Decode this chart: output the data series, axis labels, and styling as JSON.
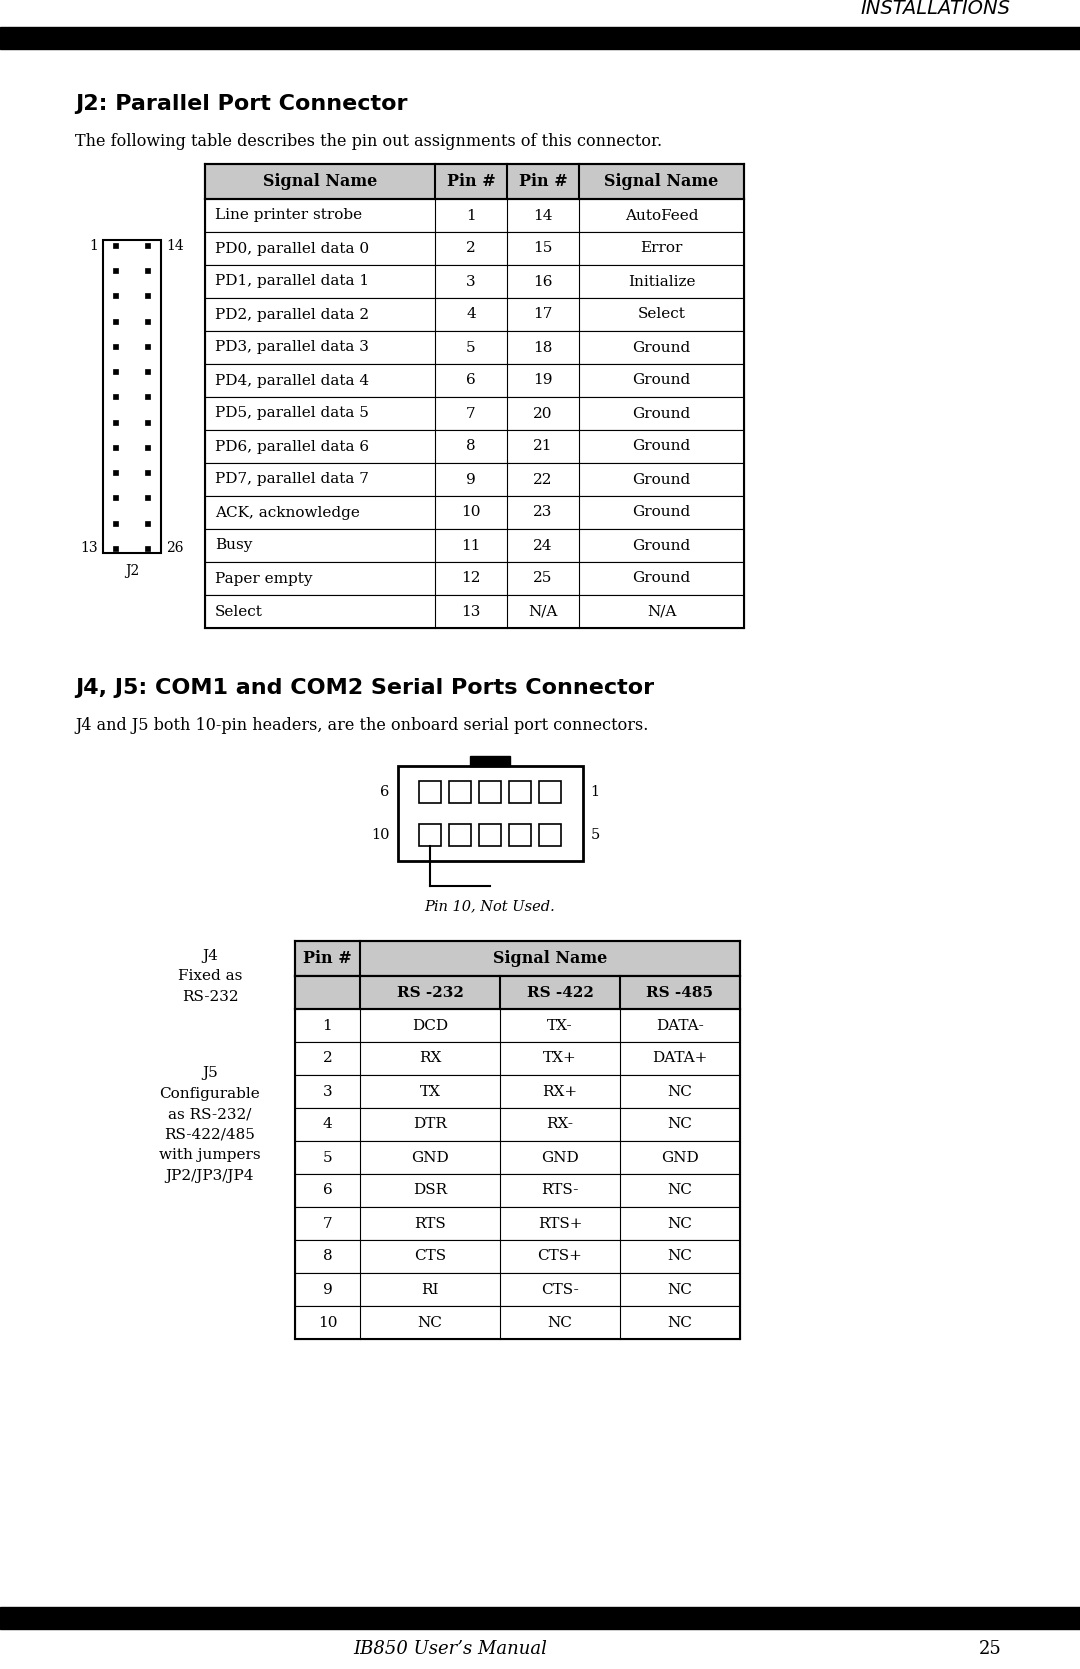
{
  "header_text": "INSTALLATIONS",
  "section1_title": "J2: Parallel Port Connector",
  "section1_desc": "The following table describes the pin out assignments of this connector.",
  "j2_table_headers": [
    "Signal Name",
    "Pin #",
    "Pin #",
    "Signal Name"
  ],
  "j2_table_data": [
    [
      "Line printer strobe",
      "1",
      "14",
      "AutoFeed"
    ],
    [
      "PD0, parallel data 0",
      "2",
      "15",
      "Error"
    ],
    [
      "PD1, parallel data 1",
      "3",
      "16",
      "Initialize"
    ],
    [
      "PD2, parallel data 2",
      "4",
      "17",
      "Select"
    ],
    [
      "PD3, parallel data 3",
      "5",
      "18",
      "Ground"
    ],
    [
      "PD4, parallel data 4",
      "6",
      "19",
      "Ground"
    ],
    [
      "PD5, parallel data 5",
      "7",
      "20",
      "Ground"
    ],
    [
      "PD6, parallel data 6",
      "8",
      "21",
      "Ground"
    ],
    [
      "PD7, parallel data 7",
      "9",
      "22",
      "Ground"
    ],
    [
      "ACK, acknowledge",
      "10",
      "23",
      "Ground"
    ],
    [
      "Busy",
      "11",
      "24",
      "Ground"
    ],
    [
      "Paper empty",
      "12",
      "25",
      "Ground"
    ],
    [
      "Select",
      "13",
      "N/A",
      "N/A"
    ]
  ],
  "section2_title": "J4, J5: COM1 and COM2 Serial Ports Connector",
  "section2_desc": "J4 and J5 both 10-pin headers, are the onboard serial port connectors.",
  "pin10_note": "Pin 10, Not Used.",
  "j4_label": "J4\nFixed as\nRS-232",
  "j5_label": "J5\nConfigurable\nas RS-232/\nRS-422/485\nwith jumpers\nJP2/JP3/JP4",
  "j45_table_data": [
    [
      "1",
      "DCD",
      "TX-",
      "DATA-"
    ],
    [
      "2",
      "RX",
      "TX+",
      "DATA+"
    ],
    [
      "3",
      "TX",
      "RX+",
      "NC"
    ],
    [
      "4",
      "DTR",
      "RX-",
      "NC"
    ],
    [
      "5",
      "GND",
      "GND",
      "GND"
    ],
    [
      "6",
      "DSR",
      "RTS-",
      "NC"
    ],
    [
      "7",
      "RTS",
      "RTS+",
      "NC"
    ],
    [
      "8",
      "CTS",
      "CTS+",
      "NC"
    ],
    [
      "9",
      "RI",
      "CTS-",
      "NC"
    ],
    [
      "10",
      "NC",
      "NC",
      "NC"
    ]
  ],
  "footer_text": "IB850 User’s Manual",
  "footer_page": "25",
  "bg_color": "#ffffff"
}
